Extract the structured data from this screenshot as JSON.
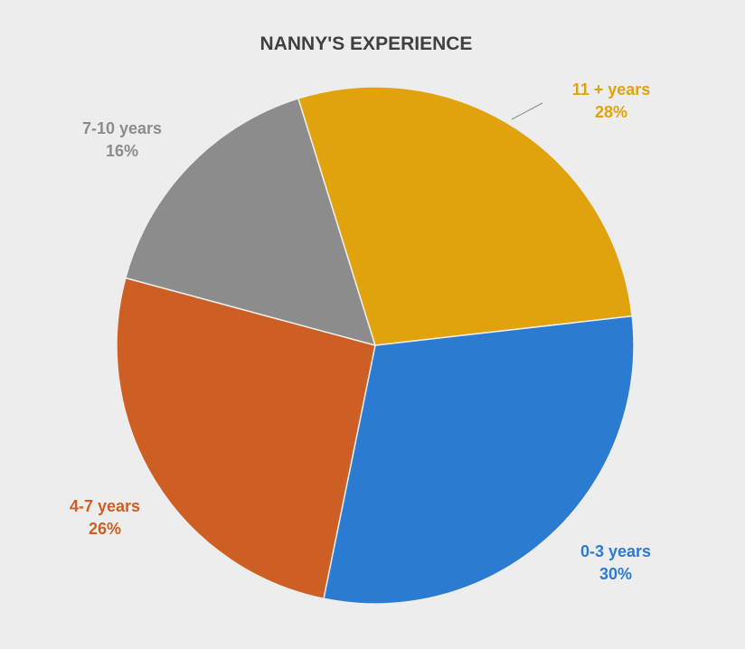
{
  "chart_data": {
    "type": "pie",
    "title": "NANNY'S EXPERIENCE",
    "slices": [
      {
        "label": "0-3 years",
        "value": 30,
        "value_label": "30%",
        "color": "#2b7bd2"
      },
      {
        "label": "4-7 years",
        "value": 26,
        "value_label": "26%",
        "color": "#cd5f24"
      },
      {
        "label": "7-10 years",
        "value": 16,
        "value_label": "16%",
        "color": "#8c8c8c"
      },
      {
        "label": "11 + years",
        "value": 28,
        "value_label": "28%",
        "color": "#e0a30c"
      }
    ],
    "data_labels": "outside",
    "legend": "none"
  }
}
